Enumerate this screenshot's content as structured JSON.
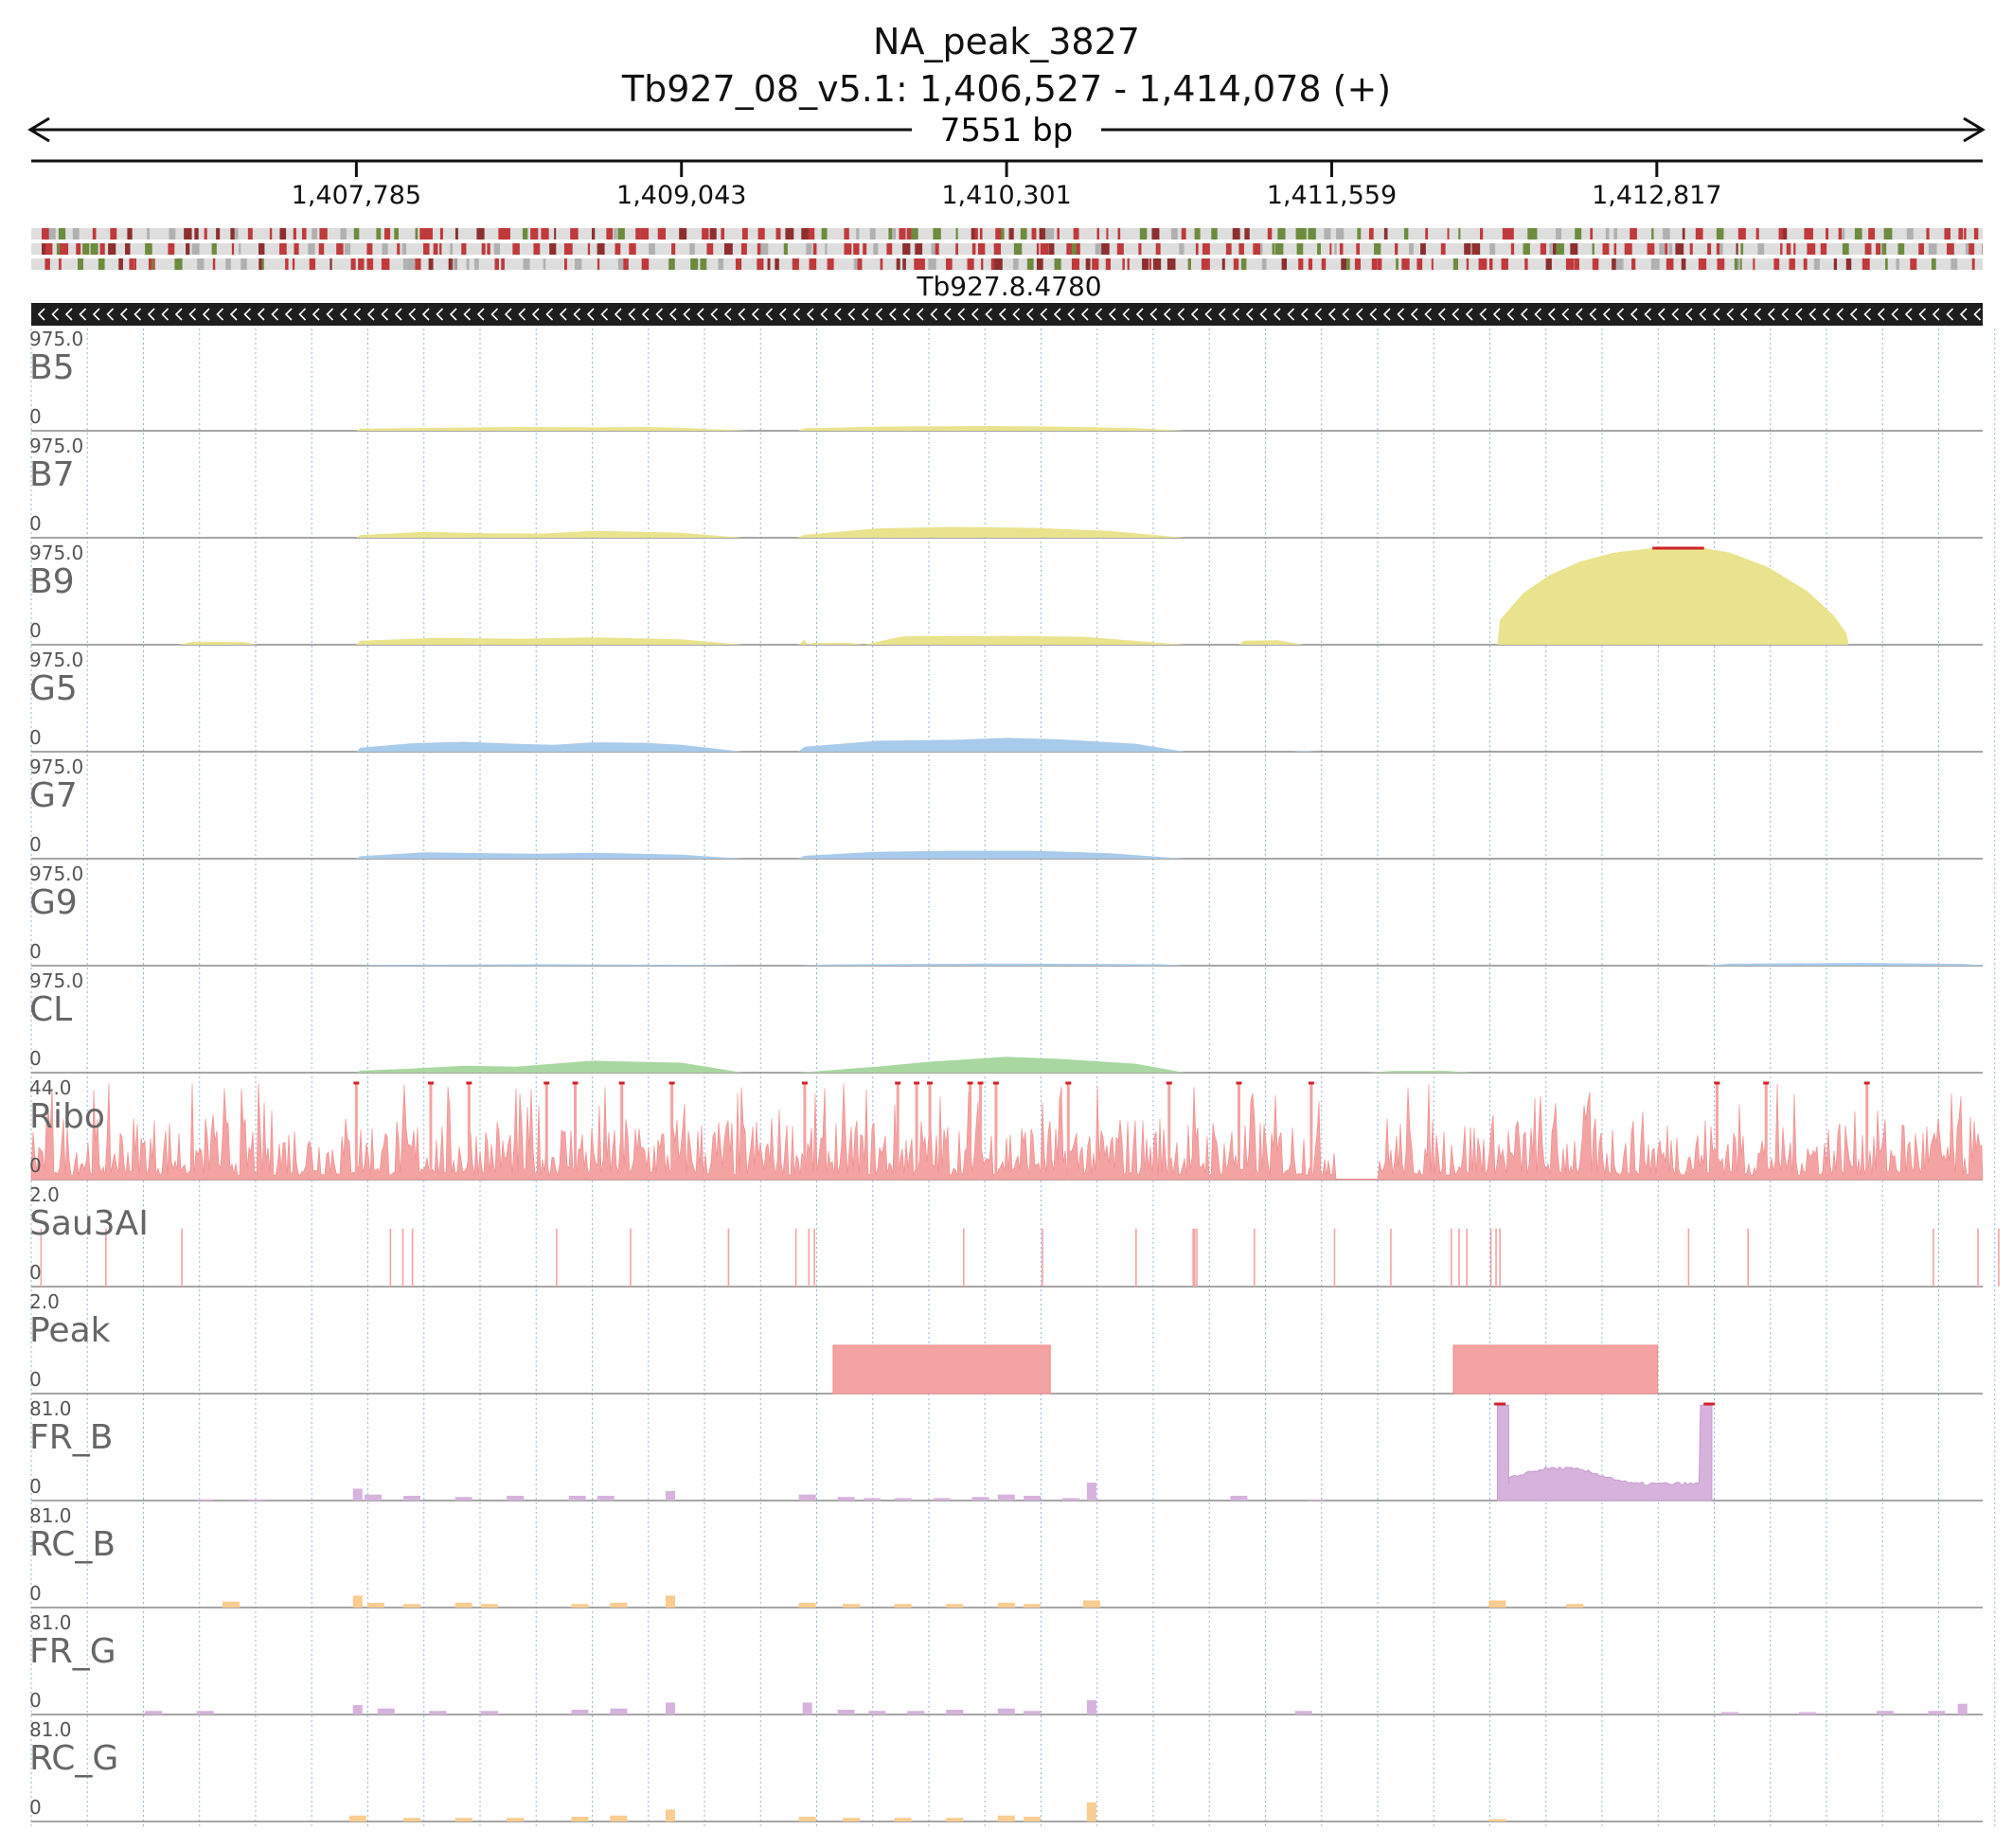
{
  "header": {
    "title": "NA_peak_3827",
    "region": "Tb927_08_v5.1: 1,406,527 - 1,414,078 (+)",
    "span": "7551 bp"
  },
  "gene": {
    "name": "Tb927.8.4780",
    "strand": "-"
  },
  "chart_data": {
    "type": "area",
    "title": "NA_peak_3827",
    "subtitle": "Tb927_08_v5.1: 1,406,527 - 1,414,078 (+)",
    "xlim": [
      1406527,
      1414078
    ],
    "x_ticks": [
      1407785,
      1409043,
      1410301,
      1411559,
      1412817
    ],
    "x_tick_labels": [
      "1,407,785",
      "1,409,043",
      "1,410,301",
      "1,411,559",
      "1,412,817"
    ],
    "grid": true,
    "colors": {
      "yellow": "#eae38e",
      "blue": "#a8cbeb",
      "green": "#a8d8a0",
      "red": "#f4a3a3",
      "purple": "#d6b2dc",
      "orange": "#f9cc8f",
      "clip": "#d0232b"
    },
    "tracks": [
      {
        "name": "B5",
        "ymax_label": "975.0",
        "ymin_label": "0",
        "ymax": 975,
        "color": "#eae38e",
        "style": "area",
        "points": [
          [
            1407785,
            0
          ],
          [
            1407800,
            22
          ],
          [
            1408100,
            30
          ],
          [
            1408400,
            38
          ],
          [
            1408700,
            34
          ],
          [
            1408900,
            38
          ],
          [
            1409043,
            30
          ],
          [
            1409300,
            0
          ],
          [
            1409495,
            0
          ],
          [
            1409520,
            25
          ],
          [
            1409800,
            42
          ],
          [
            1410200,
            48
          ],
          [
            1410500,
            42
          ],
          [
            1410800,
            28
          ],
          [
            1410990,
            0
          ]
        ]
      },
      {
        "name": "B7",
        "ymax_label": "975.0",
        "ymin_label": "0",
        "ymax": 975,
        "color": "#eae38e",
        "style": "area",
        "points": [
          [
            1407785,
            0
          ],
          [
            1407800,
            28
          ],
          [
            1408050,
            60
          ],
          [
            1408300,
            45
          ],
          [
            1408500,
            42
          ],
          [
            1408700,
            70
          ],
          [
            1408900,
            60
          ],
          [
            1409043,
            50
          ],
          [
            1409280,
            0
          ],
          [
            1409490,
            0
          ],
          [
            1409520,
            30
          ],
          [
            1409800,
            95
          ],
          [
            1410100,
            110
          ],
          [
            1410400,
            100
          ],
          [
            1410700,
            70
          ],
          [
            1410990,
            0
          ]
        ]
      },
      {
        "name": "B9",
        "ymax_label": "975.0",
        "ymin_label": "0",
        "ymax": 975,
        "color": "#eae38e",
        "style": "area",
        "clip_range": [
          1412800,
          1413000
        ],
        "points": [
          [
            1407100,
            0
          ],
          [
            1407150,
            30
          ],
          [
            1407350,
            28
          ],
          [
            1407400,
            0
          ],
          [
            1407785,
            0
          ],
          [
            1407800,
            40
          ],
          [
            1408100,
            70
          ],
          [
            1408400,
            60
          ],
          [
            1408700,
            75
          ],
          [
            1409043,
            55
          ],
          [
            1409280,
            0
          ],
          [
            1409530,
            0
          ],
          [
            1409550,
            18
          ],
          [
            1409680,
            20
          ],
          [
            1409750,
            0
          ],
          [
            1409495,
            0
          ],
          [
            1409520,
            50
          ],
          [
            1409900,
            85
          ],
          [
            1410300,
            90
          ],
          [
            1410600,
            80
          ],
          [
            1410990,
            0
          ],
          [
            1411200,
            0
          ],
          [
            1411220,
            40
          ],
          [
            1411350,
            45
          ],
          [
            1411450,
            0
          ],
          [
            1412200,
            0
          ],
          [
            1412210,
            250
          ],
          [
            1412300,
            520
          ],
          [
            1412400,
            700
          ],
          [
            1412520,
            840
          ],
          [
            1412650,
            930
          ],
          [
            1412800,
            980
          ],
          [
            1413000,
            980
          ],
          [
            1413100,
            930
          ],
          [
            1413250,
            780
          ],
          [
            1413400,
            540
          ],
          [
            1413500,
            300
          ],
          [
            1413550,
            120
          ],
          [
            1413560,
            0
          ]
        ]
      },
      {
        "name": "G5",
        "ymax_label": "975.0",
        "ymin_label": "0",
        "ymax": 975,
        "color": "#a8cbeb",
        "style": "area",
        "points": [
          [
            1407785,
            0
          ],
          [
            1407800,
            40
          ],
          [
            1408000,
            85
          ],
          [
            1408200,
            100
          ],
          [
            1408400,
            80
          ],
          [
            1408550,
            70
          ],
          [
            1408700,
            95
          ],
          [
            1408900,
            90
          ],
          [
            1409043,
            70
          ],
          [
            1409280,
            0
          ],
          [
            1409495,
            0
          ],
          [
            1409520,
            50
          ],
          [
            1409800,
            110
          ],
          [
            1410100,
            120
          ],
          [
            1410300,
            140
          ],
          [
            1410500,
            125
          ],
          [
            1410800,
            80
          ],
          [
            1410990,
            0
          ],
          [
            1411400,
            0
          ],
          [
            1411450,
            8
          ],
          [
            1411500,
            0
          ]
        ]
      },
      {
        "name": "G7",
        "ymax_label": "975.0",
        "ymin_label": "0",
        "ymax": 975,
        "color": "#a8cbeb",
        "style": "area",
        "points": [
          [
            1407785,
            0
          ],
          [
            1407800,
            25
          ],
          [
            1408050,
            65
          ],
          [
            1408300,
            55
          ],
          [
            1408500,
            50
          ],
          [
            1408700,
            60
          ],
          [
            1409043,
            40
          ],
          [
            1409280,
            0
          ],
          [
            1409495,
            0
          ],
          [
            1409520,
            30
          ],
          [
            1409800,
            70
          ],
          [
            1410100,
            80
          ],
          [
            1410400,
            80
          ],
          [
            1410700,
            55
          ],
          [
            1410990,
            0
          ]
        ]
      },
      {
        "name": "G9",
        "ymax_label": "975.0",
        "ymin_label": "0",
        "ymax": 975,
        "color": "#a8cbeb",
        "style": "area",
        "points": [
          [
            1407785,
            0
          ],
          [
            1407900,
            10
          ],
          [
            1408500,
            14
          ],
          [
            1409043,
            10
          ],
          [
            1409280,
            0
          ],
          [
            1409495,
            0
          ],
          [
            1409600,
            12
          ],
          [
            1410300,
            22
          ],
          [
            1410900,
            14
          ],
          [
            1410990,
            0
          ],
          [
            1413000,
            0
          ],
          [
            1413100,
            20
          ],
          [
            1413600,
            28
          ],
          [
            1414000,
            18
          ],
          [
            1414100,
            0
          ]
        ]
      },
      {
        "name": "CL",
        "ymax_label": "975.0",
        "ymin_label": "0",
        "ymax": 975,
        "color": "#a8d8a0",
        "style": "area",
        "points": [
          [
            1407785,
            0
          ],
          [
            1407800,
            20
          ],
          [
            1408000,
            40
          ],
          [
            1408200,
            70
          ],
          [
            1408400,
            60
          ],
          [
            1408500,
            80
          ],
          [
            1408700,
            120
          ],
          [
            1409043,
            100
          ],
          [
            1409280,
            0
          ],
          [
            1409495,
            0
          ],
          [
            1409800,
            60
          ],
          [
            1410000,
            110
          ],
          [
            1410300,
            160
          ],
          [
            1410500,
            140
          ],
          [
            1410800,
            90
          ],
          [
            1410990,
            0
          ],
          [
            1411700,
            0
          ],
          [
            1411800,
            18
          ],
          [
            1412000,
            18
          ],
          [
            1412100,
            0
          ]
        ]
      },
      {
        "name": "Ribo",
        "ymax_label": "44.0",
        "ymin_label": "0",
        "ymax": 44,
        "color": "#f4a3a3",
        "style": "signal",
        "clip_positions": [
          1407785,
          1408073,
          1408221,
          1408521,
          1408632,
          1408812,
          1409006,
          1409520,
          1409880,
          1409953,
          1410004,
          1410160,
          1410200,
          1410260,
          1410540,
          1410930,
          1411200,
          1411480,
          1413050,
          1413240,
          1413630
        ],
        "dropouts": [
          [
            1411570,
            1411740
          ]
        ]
      },
      {
        "name": "Sau3AI",
        "ymax_label": "2.0",
        "ymin_label": "0",
        "ymax": 2,
        "color": "#f4a3a3",
        "style": "ticks",
        "positions": [
          1406565,
          1406816,
          1407110,
          1407917,
          1407965,
          1408002,
          1408560,
          1408846,
          1409225,
          1409486,
          1409536,
          1409557,
          1410135,
          1410440,
          1410802,
          1411023,
          1411029,
          1411037,
          1411260,
          1411570,
          1411788,
          1412022,
          1412052,
          1412082,
          1412175,
          1412195,
          1412210,
          1412940,
          1413170,
          1413887,
          1414060,
          1414140,
          1414280
        ]
      },
      {
        "name": "Peak",
        "ymax_label": "2.0",
        "ymin_label": "0",
        "ymax": 2,
        "color": "#f4a3a3",
        "style": "blocks",
        "intervals": [
          [
            1409630,
            1410470
          ],
          [
            1412030,
            1412820
          ]
        ]
      },
      {
        "name": "FR_B",
        "ymax_label": "81.0",
        "ymin_label": "0",
        "ymax": 81,
        "color": "#d6b2dc",
        "style": "bars",
        "points": [
          [
            1407200,
            1
          ],
          [
            1407400,
            1
          ],
          [
            1407790,
            10
          ],
          [
            1407850,
            5
          ],
          [
            1408000,
            4
          ],
          [
            1408200,
            3
          ],
          [
            1408400,
            4
          ],
          [
            1408640,
            4
          ],
          [
            1408750,
            4
          ],
          [
            1409000,
            8
          ],
          [
            1409530,
            5
          ],
          [
            1409680,
            3
          ],
          [
            1409780,
            2
          ],
          [
            1409900,
            2
          ],
          [
            1410050,
            2
          ],
          [
            1410200,
            3
          ],
          [
            1410300,
            5
          ],
          [
            1410400,
            4
          ],
          [
            1410550,
            2
          ],
          [
            1410630,
            15
          ],
          [
            1411200,
            4
          ],
          [
            1411500,
            1
          ]
        ],
        "peak_region": [
          1412200,
          1413030
        ],
        "peak_edge": 80,
        "peak_level": 14,
        "clip_positions": [
          1412210,
          1413020
        ]
      },
      {
        "name": "RC_B",
        "ymax_label": "81.0",
        "ymin_label": "0",
        "ymax": 81,
        "color": "#f9cc8f",
        "style": "bars",
        "points": [
          [
            1407300,
            5
          ],
          [
            1407790,
            10
          ],
          [
            1407860,
            4
          ],
          [
            1408000,
            3
          ],
          [
            1408200,
            4
          ],
          [
            1408300,
            3
          ],
          [
            1408650,
            3
          ],
          [
            1408800,
            4
          ],
          [
            1409000,
            10
          ],
          [
            1409530,
            4
          ],
          [
            1409700,
            3
          ],
          [
            1409900,
            3
          ],
          [
            1410100,
            3
          ],
          [
            1410300,
            4
          ],
          [
            1410400,
            3
          ],
          [
            1410630,
            6
          ],
          [
            1412200,
            6
          ],
          [
            1412500,
            3
          ]
        ]
      },
      {
        "name": "FR_G",
        "ymax_label": "81.0",
        "ymin_label": "0",
        "ymax": 81,
        "color": "#d6b2dc",
        "style": "bars",
        "points": [
          [
            1407000,
            3
          ],
          [
            1407200,
            3
          ],
          [
            1407790,
            8
          ],
          [
            1407900,
            5
          ],
          [
            1408100,
            3
          ],
          [
            1408300,
            3
          ],
          [
            1408650,
            4
          ],
          [
            1408800,
            5
          ],
          [
            1409000,
            10
          ],
          [
            1409530,
            10
          ],
          [
            1409680,
            4
          ],
          [
            1409800,
            3
          ],
          [
            1409950,
            3
          ],
          [
            1410100,
            4
          ],
          [
            1410300,
            5
          ],
          [
            1410400,
            3
          ],
          [
            1410630,
            12
          ],
          [
            1411450,
            3
          ],
          [
            1413100,
            2
          ],
          [
            1413400,
            2
          ],
          [
            1413700,
            3
          ],
          [
            1413900,
            3
          ],
          [
            1414000,
            9
          ]
        ]
      },
      {
        "name": "RC_G",
        "ymax_label": "81.0",
        "ymin_label": "0",
        "ymax": 81,
        "color": "#f9cc8f",
        "style": "bars",
        "points": [
          [
            1407790,
            5
          ],
          [
            1408000,
            3
          ],
          [
            1408200,
            3
          ],
          [
            1408400,
            3
          ],
          [
            1408650,
            4
          ],
          [
            1408800,
            5
          ],
          [
            1409000,
            10
          ],
          [
            1409530,
            4
          ],
          [
            1409700,
            3
          ],
          [
            1409900,
            3
          ],
          [
            1410100,
            3
          ],
          [
            1410300,
            5
          ],
          [
            1410400,
            4
          ],
          [
            1410630,
            16
          ],
          [
            1412200,
            2
          ]
        ]
      }
    ]
  }
}
